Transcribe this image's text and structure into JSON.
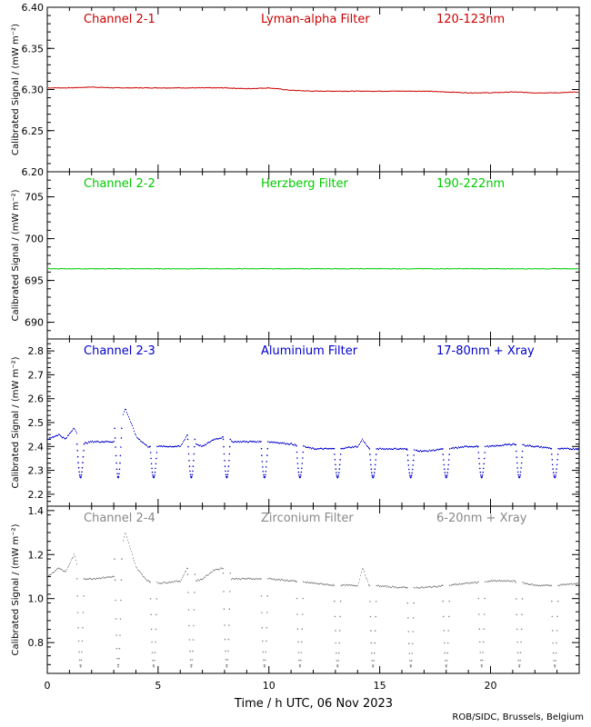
{
  "x_axis": {
    "label": "Time / h UTC, 06 Nov 2023",
    "ticks": [
      0,
      5,
      10,
      15,
      20
    ],
    "xlim": [
      0,
      24
    ]
  },
  "ylabel": "Calibrated Signal / (mW m⁻²)",
  "credit": "ROB/SIDC, Brussels, Belgium",
  "chart_data": [
    {
      "type": "scatter",
      "channel": "Channel 2-1",
      "filter": "Lyman-alpha Filter",
      "band": "120-123nm",
      "color": "#cc0000",
      "ylim": [
        6.2,
        6.4
      ],
      "yticks": [
        "6.20",
        "6.25",
        "6.30",
        "6.35",
        "6.40"
      ],
      "series": [
        {
          "x": [
            0,
            1,
            2,
            3,
            4,
            5,
            6,
            7,
            8,
            9,
            10,
            11,
            12,
            13,
            14,
            15,
            16,
            17,
            18,
            19,
            20,
            21,
            22,
            23,
            24
          ],
          "y": [
            6.302,
            6.302,
            6.303,
            6.302,
            6.302,
            6.302,
            6.302,
            6.302,
            6.302,
            6.301,
            6.302,
            6.299,
            6.298,
            6.298,
            6.298,
            6.298,
            6.298,
            6.298,
            6.297,
            6.296,
            6.296,
            6.297,
            6.296,
            6.296,
            6.297
          ]
        }
      ]
    },
    {
      "type": "scatter",
      "channel": "Channel 2-2",
      "filter": "Herzberg Filter",
      "band": "190-222nm",
      "color": "#00cc00",
      "ylim": [
        688,
        708
      ],
      "yticks": [
        "690",
        "695",
        "700",
        "705"
      ],
      "series": [
        {
          "x": [
            0,
            2,
            4,
            6,
            8,
            10,
            12,
            14,
            16,
            18,
            20,
            22,
            24
          ],
          "y": [
            696.4,
            696.4,
            696.4,
            696.4,
            696.4,
            696.4,
            696.4,
            696.4,
            696.4,
            696.4,
            696.4,
            696.4,
            696.4
          ]
        }
      ]
    },
    {
      "type": "scatter",
      "channel": "Channel 2-3",
      "filter": "Aluminium Filter",
      "band": "17-80nm + Xray",
      "color": "#0000cc",
      "ylim": [
        2.15,
        2.85
      ],
      "yticks": [
        "2.2",
        "2.3",
        "2.4",
        "2.5",
        "2.6",
        "2.7",
        "2.8"
      ],
      "baseline": [
        [
          0,
          2.43
        ],
        [
          0.5,
          2.45
        ],
        [
          0.8,
          2.43
        ],
        [
          1.2,
          2.48
        ],
        [
          1.5,
          2.41
        ],
        [
          2,
          2.42
        ],
        [
          3,
          2.42
        ],
        [
          3.5,
          2.56
        ],
        [
          4,
          2.44
        ],
        [
          4.5,
          2.4
        ],
        [
          5,
          2.4
        ],
        [
          6,
          2.4
        ],
        [
          6.3,
          2.45
        ],
        [
          6.7,
          2.41
        ],
        [
          7,
          2.4
        ],
        [
          7.5,
          2.43
        ],
        [
          8,
          2.44
        ],
        [
          8.2,
          2.42
        ],
        [
          10,
          2.42
        ],
        [
          11,
          2.41
        ],
        [
          12,
          2.39
        ],
        [
          13,
          2.39
        ],
        [
          14,
          2.4
        ],
        [
          14.2,
          2.43
        ],
        [
          14.5,
          2.39
        ],
        [
          16,
          2.39
        ],
        [
          17,
          2.38
        ],
        [
          18,
          2.39
        ],
        [
          19,
          2.4
        ],
        [
          20,
          2.4
        ],
        [
          21,
          2.41
        ],
        [
          22,
          2.4
        ],
        [
          23,
          2.39
        ],
        [
          24,
          2.39
        ]
      ],
      "dips": [
        [
          1.5,
          2.27
        ],
        [
          3.2,
          2.27
        ],
        [
          4.8,
          2.27
        ],
        [
          6.5,
          2.27
        ],
        [
          8.1,
          2.27
        ],
        [
          9.8,
          2.27
        ],
        [
          11.4,
          2.27
        ],
        [
          13.1,
          2.27
        ],
        [
          14.7,
          2.27
        ],
        [
          16.4,
          2.27
        ],
        [
          18.0,
          2.27
        ],
        [
          19.6,
          2.27
        ],
        [
          21.3,
          2.27
        ],
        [
          22.9,
          2.27
        ]
      ]
    },
    {
      "type": "scatter",
      "channel": "Channel 2-4",
      "filter": "Zirconium Filter",
      "band": "6-20nm + Xray",
      "color": "#888888",
      "ylim": [
        0.66,
        1.42
      ],
      "yticks": [
        "0.8",
        "1.0",
        "1.2",
        "1.4"
      ],
      "baseline": [
        [
          0,
          1.1
        ],
        [
          0.5,
          1.14
        ],
        [
          0.8,
          1.12
        ],
        [
          1.2,
          1.2
        ],
        [
          1.5,
          1.09
        ],
        [
          2,
          1.09
        ],
        [
          3,
          1.1
        ],
        [
          3.5,
          1.3
        ],
        [
          4,
          1.14
        ],
        [
          4.5,
          1.08
        ],
        [
          5,
          1.07
        ],
        [
          6,
          1.08
        ],
        [
          6.3,
          1.14
        ],
        [
          6.7,
          1.08
        ],
        [
          7,
          1.09
        ],
        [
          7.5,
          1.13
        ],
        [
          8,
          1.14
        ],
        [
          8.2,
          1.09
        ],
        [
          10,
          1.09
        ],
        [
          11,
          1.08
        ],
        [
          12,
          1.07
        ],
        [
          13,
          1.06
        ],
        [
          14,
          1.06
        ],
        [
          14.2,
          1.14
        ],
        [
          14.5,
          1.06
        ],
        [
          16,
          1.05
        ],
        [
          17,
          1.05
        ],
        [
          18,
          1.06
        ],
        [
          19,
          1.07
        ],
        [
          20,
          1.08
        ],
        [
          21,
          1.08
        ],
        [
          22,
          1.06
        ],
        [
          23,
          1.06
        ],
        [
          24,
          1.07
        ]
      ],
      "dips": [
        [
          1.5,
          0.69
        ],
        [
          3.2,
          0.69
        ],
        [
          4.8,
          0.69
        ],
        [
          6.5,
          0.69
        ],
        [
          8.1,
          0.69
        ],
        [
          9.8,
          0.69
        ],
        [
          11.4,
          0.69
        ],
        [
          13.1,
          0.69
        ],
        [
          14.7,
          0.69
        ],
        [
          16.4,
          0.69
        ],
        [
          18.0,
          0.69
        ],
        [
          19.6,
          0.69
        ],
        [
          21.3,
          0.69
        ],
        [
          22.9,
          0.69
        ]
      ]
    }
  ]
}
